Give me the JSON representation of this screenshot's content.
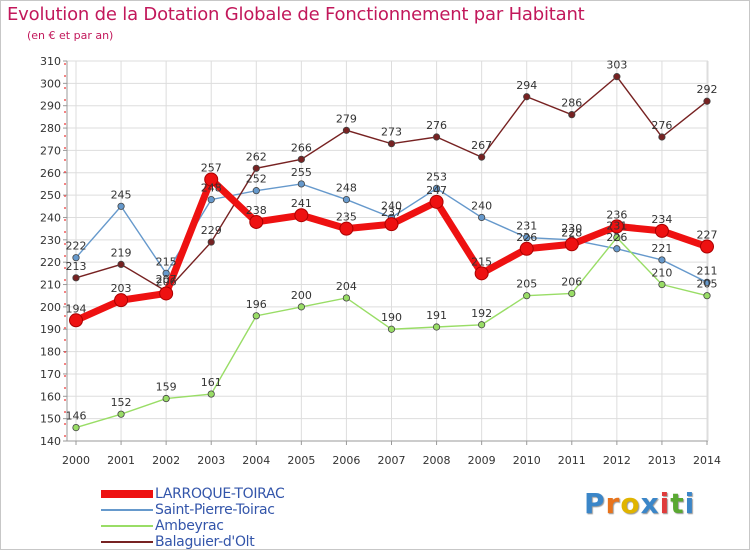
{
  "chart_data": {
    "type": "line",
    "title": "Evolution de la Dotation Globale de Fonctionnement par Habitant",
    "subtitle": "(en € et par an)",
    "xlabel": "",
    "ylabel": "",
    "ylim": [
      140,
      310
    ],
    "ytick_step": 10,
    "categories": [
      "2000",
      "2001",
      "2002",
      "2003",
      "2004",
      "2005",
      "2006",
      "2007",
      "2008",
      "2009",
      "2010",
      "2011",
      "2012",
      "2013",
      "2014"
    ],
    "series": [
      {
        "name": "LARROQUE-TOIRAC",
        "color": "#ee1111",
        "emphasis": true,
        "values": [
          194,
          203,
          206,
          257,
          238,
          241,
          235,
          237,
          247,
          215,
          226,
          228,
          236,
          234,
          227
        ]
      },
      {
        "name": "Saint-Pierre-Toirac",
        "color": "#6699cc",
        "emphasis": false,
        "values": [
          222,
          245,
          215,
          248,
          252,
          255,
          248,
          240,
          253,
          240,
          231,
          230,
          226,
          221,
          211
        ]
      },
      {
        "name": "Ambeyrac",
        "color": "#99dd66",
        "emphasis": false,
        "values": [
          146,
          152,
          159,
          161,
          196,
          200,
          204,
          190,
          191,
          192,
          205,
          206,
          231,
          210,
          205
        ]
      },
      {
        "name": "Balaguier-d'Olt",
        "color": "#772222",
        "emphasis": false,
        "values": [
          213,
          219,
          207,
          229,
          262,
          266,
          279,
          273,
          276,
          267,
          294,
          286,
          303,
          276,
          292
        ]
      }
    ],
    "grid": true,
    "legend_position": "bottom-left"
  },
  "logo": {
    "text": "Proxiti",
    "letters": [
      "P",
      "r",
      "o",
      "x",
      "i",
      "t",
      "i"
    ],
    "colors": [
      "#3b86c8",
      "#e8731c",
      "#e0b400",
      "#3b86c8",
      "#e03c3c",
      "#5aa832",
      "#3b86c8"
    ]
  }
}
